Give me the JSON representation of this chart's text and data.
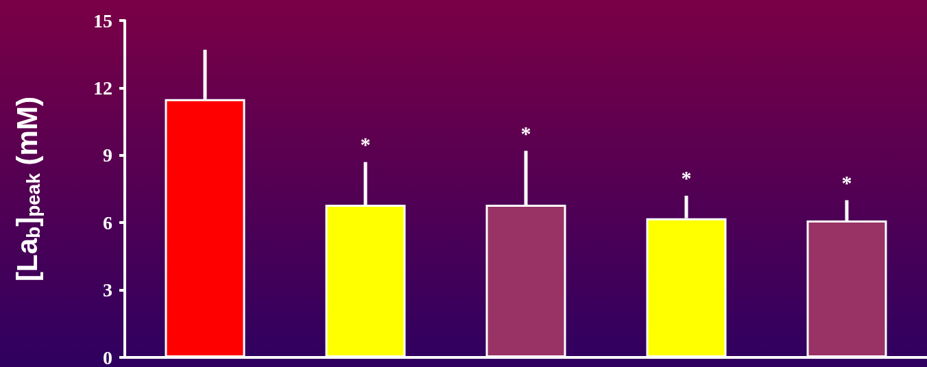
{
  "chart_data": {
    "type": "bar",
    "categories": [
      null,
      null,
      null,
      null,
      null
    ],
    "values": [
      11.5,
      6.8,
      6.8,
      6.2,
      6.1
    ],
    "colors": [
      "#ff0000",
      "#ffff00",
      "#993366",
      "#ffff00",
      "#993366"
    ],
    "errors": [
      [
        11.5,
        13.7
      ],
      [
        6.8,
        8.7
      ],
      [
        6.8,
        9.2
      ],
      [
        6.2,
        7.2
      ],
      [
        6.1,
        7.0
      ]
    ],
    "value_labels": [
      null,
      "*",
      "*",
      "*",
      "*"
    ],
    "ylabel": "[La$_{b}$]$_{peak}$ (mM)",
    "ylim": [
      0,
      15
    ],
    "yticks": [
      0,
      3,
      6,
      9,
      12,
      15
    ],
    "grid": false
  }
}
